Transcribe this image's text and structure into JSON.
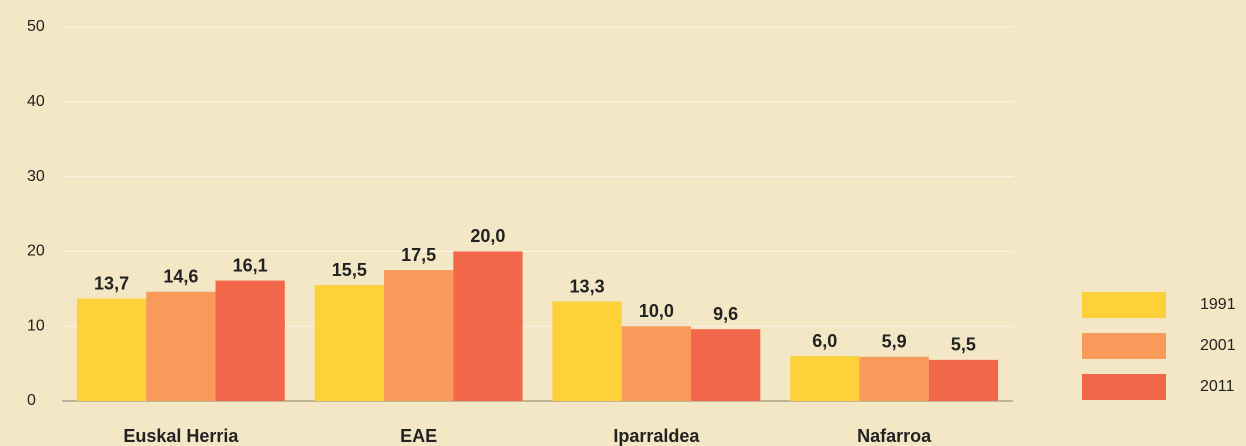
{
  "chart_data": {
    "type": "bar",
    "categories": [
      "Euskal Herria",
      "EAE",
      "Iparraldea",
      "Nafarroa"
    ],
    "series": [
      {
        "name": "1991",
        "color": "#fcd13a",
        "values": [
          13.7,
          15.5,
          13.3,
          6.0
        ],
        "value_labels": [
          "13,7",
          "15,5",
          "13,3",
          "6,0"
        ]
      },
      {
        "name": "2001",
        "color": "#f89b5a",
        "values": [
          14.6,
          17.5,
          10.0,
          5.9
        ],
        "value_labels": [
          "14,6",
          "17,5",
          "10,0",
          "5,9"
        ]
      },
      {
        "name": "2011",
        "color": "#f2674a",
        "values": [
          16.1,
          20.0,
          9.6,
          5.5
        ],
        "value_labels": [
          "16,1",
          "20,0",
          "9,6",
          "5,5"
        ]
      }
    ],
    "ylim": [
      0,
      50
    ],
    "yticks": [
      0,
      10,
      20,
      30,
      40,
      50
    ],
    "grid": true,
    "legend": "right"
  }
}
